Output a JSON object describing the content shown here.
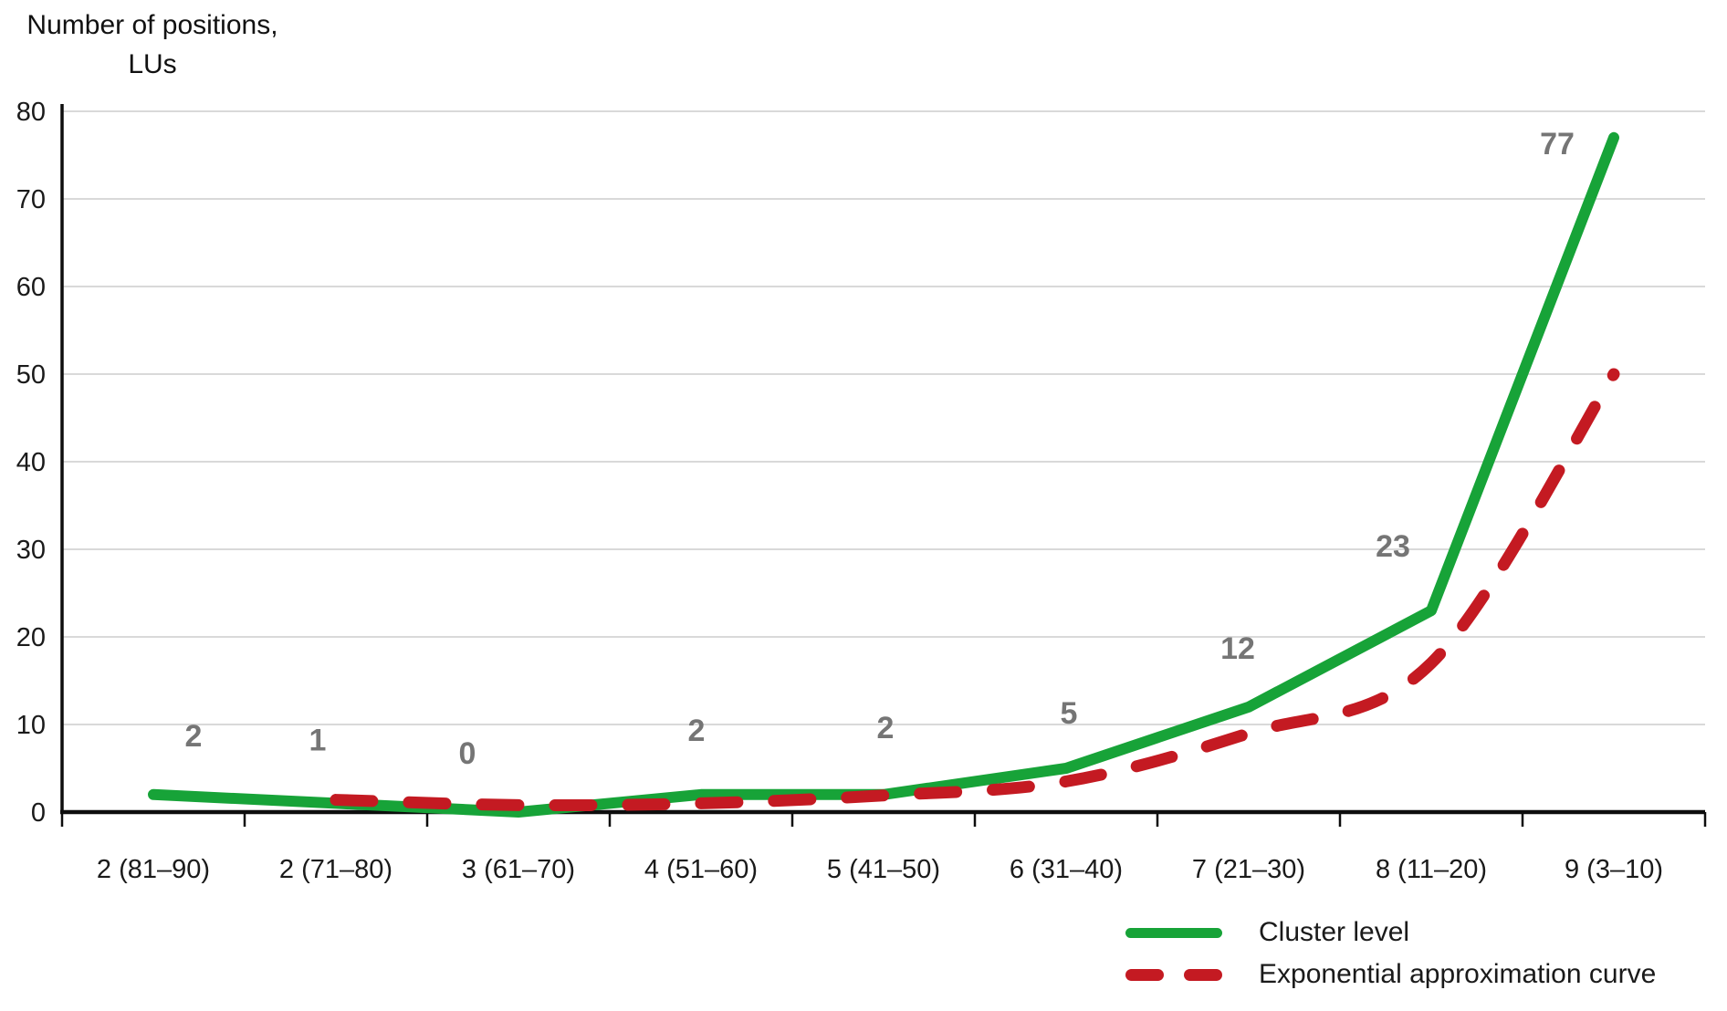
{
  "title": {
    "line1": "Number of positions,",
    "line2": "LUs"
  },
  "chart_data": {
    "type": "line",
    "title": "Number of positions, LUs",
    "xlabel": "",
    "ylabel": "Number of positions, LUs",
    "ylim": [
      0,
      80
    ],
    "y_tick_step": 10,
    "y_ticks": [
      0,
      10,
      20,
      30,
      40,
      50,
      60,
      70,
      80
    ],
    "grid": true,
    "legend_position": "bottom-right",
    "categories": [
      "2 (81–90)",
      "2 (71–80)",
      "3 (61–70)",
      "4 (51–60)",
      "5 (41–50)",
      "6 (31–40)",
      "7 (21–30)",
      "8 (11–20)",
      "9 (3–10)"
    ],
    "series": [
      {
        "name": "Cluster level",
        "color": "#17a338",
        "line_style": "solid",
        "values": [
          2,
          1,
          0,
          2,
          2,
          5,
          12,
          23,
          77
        ],
        "data_labels": [
          "2",
          "1",
          "0",
          "2",
          "2",
          "5",
          "12",
          "23",
          "77"
        ]
      },
      {
        "name": "Exponential approximation curve",
        "color": "#c41a22",
        "line_style": "dashed",
        "values": [
          null,
          1.4,
          0.8,
          1,
          1.9,
          3.5,
          9,
          17,
          50
        ]
      }
    ]
  },
  "colors": {
    "grid": "#d9d9d9",
    "axis": "#0d0d0d",
    "tick_text": "#1a1a1a",
    "data_label": "#757575",
    "background": "#ffffff"
  }
}
